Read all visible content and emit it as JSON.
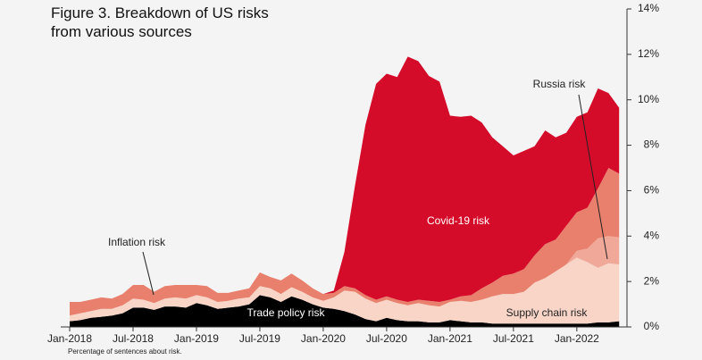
{
  "chart_data": {
    "type": "stacked-area",
    "title": "Figure 3. Breakdown of US risks from various sources",
    "note": "Percentage of sentences about risk.",
    "categories": [
      "Jan-2018",
      null,
      null,
      null,
      null,
      null,
      "Jul-2018",
      null,
      null,
      null,
      null,
      null,
      "Jan-2019",
      null,
      null,
      null,
      null,
      null,
      "Jul-2019",
      null,
      null,
      null,
      null,
      null,
      "Jan-2020",
      null,
      null,
      null,
      null,
      null,
      "Jul-2020",
      null,
      null,
      null,
      null,
      null,
      "Jan-2021",
      null,
      null,
      null,
      null,
      null,
      "Jul-2021",
      null,
      null,
      null,
      null,
      null,
      "Jan-2022",
      null,
      null,
      null,
      null
    ],
    "series": [
      {
        "name": "Trade policy risk",
        "color": "#000000",
        "values": [
          0.25,
          0.3,
          0.4,
          0.45,
          0.5,
          0.6,
          0.85,
          0.85,
          0.75,
          0.9,
          0.9,
          0.85,
          1.05,
          0.95,
          0.8,
          0.85,
          0.9,
          1.0,
          1.4,
          1.3,
          1.1,
          1.35,
          1.2,
          1.0,
          0.85,
          0.8,
          0.7,
          0.55,
          0.35,
          0.25,
          0.4,
          0.3,
          0.25,
          0.25,
          0.2,
          0.2,
          0.3,
          0.25,
          0.2,
          0.2,
          0.15,
          0.15,
          0.15,
          0.15,
          0.15,
          0.15,
          0.15,
          0.15,
          0.15,
          0.15,
          0.2,
          0.2,
          0.25
        ]
      },
      {
        "name": "Supply chain risk",
        "color": "#f9d5c8",
        "values": [
          0.25,
          0.3,
          0.3,
          0.35,
          0.3,
          0.35,
          0.4,
          0.35,
          0.3,
          0.35,
          0.4,
          0.4,
          0.35,
          0.35,
          0.3,
          0.3,
          0.35,
          0.3,
          0.4,
          0.4,
          0.35,
          0.4,
          0.35,
          0.3,
          0.3,
          0.5,
          0.9,
          1.0,
          0.9,
          0.8,
          0.8,
          0.75,
          0.7,
          0.8,
          0.75,
          0.7,
          0.8,
          0.9,
          0.9,
          1.0,
          1.2,
          1.3,
          1.3,
          1.4,
          1.8,
          2.0,
          2.3,
          2.6,
          2.9,
          2.7,
          2.4,
          2.6,
          2.5
        ]
      },
      {
        "name": "Russia risk",
        "color": "#f0a898",
        "values": [
          0,
          0,
          0,
          0,
          0,
          0,
          0,
          0,
          0,
          0,
          0,
          0,
          0,
          0,
          0,
          0,
          0,
          0,
          0,
          0,
          0,
          0,
          0,
          0,
          0,
          0,
          0,
          0,
          0,
          0,
          0,
          0,
          0,
          0,
          0,
          0,
          0,
          0,
          0,
          0,
          0,
          0,
          0,
          0,
          0,
          0,
          0,
          0,
          0.3,
          0.6,
          1.3,
          1.2,
          1.2
        ]
      },
      {
        "name": "Inflation risk",
        "color": "#e8806d",
        "values": [
          0.6,
          0.5,
          0.5,
          0.5,
          0.45,
          0.5,
          0.6,
          0.65,
          0.5,
          0.55,
          0.55,
          0.6,
          0.45,
          0.5,
          0.4,
          0.35,
          0.35,
          0.4,
          0.6,
          0.5,
          0.6,
          0.6,
          0.5,
          0.4,
          0.3,
          0.2,
          0.2,
          0.15,
          0.15,
          0.15,
          0.15,
          0.15,
          0.15,
          0.15,
          0.2,
          0.2,
          0.1,
          0.2,
          0.3,
          0.5,
          0.6,
          0.8,
          0.9,
          1.0,
          1.2,
          1.5,
          1.4,
          1.7,
          1.7,
          1.8,
          2.2,
          3.0,
          2.8
        ]
      },
      {
        "name": "Covid-19 risk",
        "color": "#d50b2a",
        "values": [
          0,
          0,
          0,
          0,
          0,
          0,
          0,
          0,
          0,
          0,
          0,
          0,
          0,
          0,
          0,
          0,
          0,
          0,
          0,
          0,
          0,
          0,
          0,
          0,
          0,
          0.1,
          1.5,
          4.5,
          7.5,
          9.5,
          9.8,
          9.8,
          10.8,
          10.5,
          9.9,
          9.7,
          8.1,
          7.9,
          7.9,
          7.3,
          6.4,
          5.7,
          5.2,
          5.2,
          4.8,
          5.0,
          4.5,
          4.1,
          4.2,
          4.2,
          4.4,
          3.3,
          2.9
        ]
      }
    ],
    "ylim": [
      0,
      14
    ],
    "yticks": [
      {
        "value": 0,
        "label": "0%"
      },
      {
        "value": 2,
        "label": "2%"
      },
      {
        "value": 4,
        "label": "4%"
      },
      {
        "value": 6,
        "label": "6%"
      },
      {
        "value": 8,
        "label": "8%"
      },
      {
        "value": 10,
        "label": "10%"
      },
      {
        "value": 12,
        "label": "12%"
      },
      {
        "value": 14,
        "label": "14%"
      }
    ]
  }
}
